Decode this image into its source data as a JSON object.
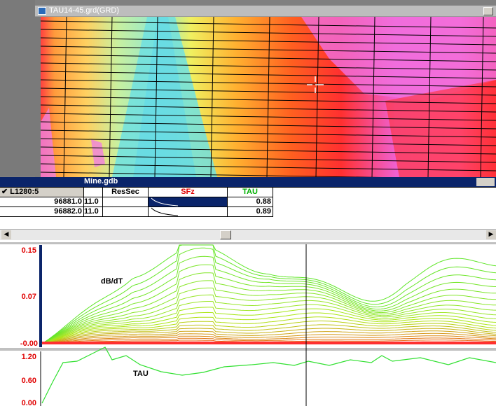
{
  "map_window": {
    "title": "TAU14-45.grd(GRD)"
  },
  "database_window": {
    "title": "Mine.gdb",
    "header": [
      "✔ L1280:5",
      "ResSec",
      "SFz",
      "TAU"
    ],
    "rows": [
      [
        "96881.0",
        "11.0",
        "0.88"
      ],
      [
        "96882.0",
        "11.0",
        "0.89"
      ]
    ]
  },
  "profiles": [
    {
      "label": "dB/dT",
      "axis_labels": [
        "0.15",
        "0.07",
        "-0.00"
      ]
    },
    {
      "label": "TAU",
      "axis_labels": [
        "1.20",
        "0.60",
        "0.00"
      ]
    }
  ]
}
